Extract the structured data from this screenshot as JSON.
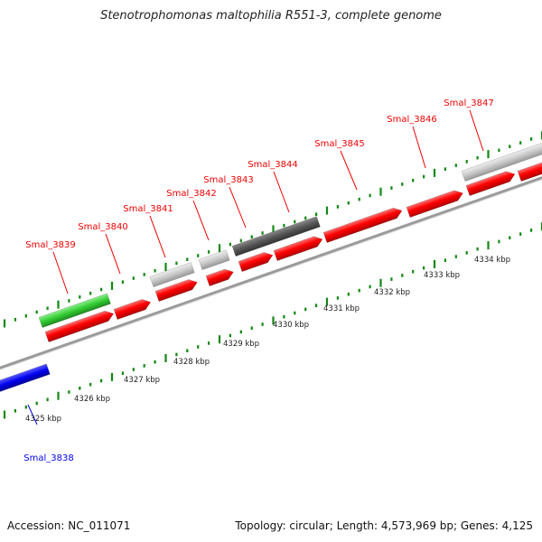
{
  "title": "Stenotrophomonas maltophilia R551-3, complete genome",
  "footer": {
    "accession": "Accession: NC_011071",
    "summary": "Topology: circular; Length: 4,573,969 bp; Genes: 4,125"
  },
  "colors": {
    "forward_cds": "#ff0000",
    "reverse_cds": "#0000ee",
    "rna": "#33cc33",
    "pseudo_light": "#c8c8c8",
    "pseudo_dark": "#555555",
    "backbone": "#888888",
    "tick": "#118811"
  },
  "kbp_labels": [
    "4325 kbp",
    "4326 kbp",
    "4327 kbp",
    "4328 kbp",
    "4329 kbp",
    "4330 kbp",
    "4331 kbp",
    "4332 kbp",
    "4333 kbp",
    "4334 kbp"
  ],
  "gene_labels": [
    {
      "name": "Smal_3838",
      "color": "#0000ee"
    },
    {
      "name": "Smal_3839",
      "color": "#ee0000"
    },
    {
      "name": "Smal_3840",
      "color": "#ee0000"
    },
    {
      "name": "Smal_3841",
      "color": "#ee0000"
    },
    {
      "name": "Smal_3842",
      "color": "#ee0000"
    },
    {
      "name": "Smal_3843",
      "color": "#ee0000"
    },
    {
      "name": "Smal_3844",
      "color": "#ee0000"
    },
    {
      "name": "Smal_3845",
      "color": "#ee0000"
    },
    {
      "name": "Smal_3846",
      "color": "#ee0000"
    },
    {
      "name": "Smal_3847",
      "color": "#ee0000"
    }
  ]
}
